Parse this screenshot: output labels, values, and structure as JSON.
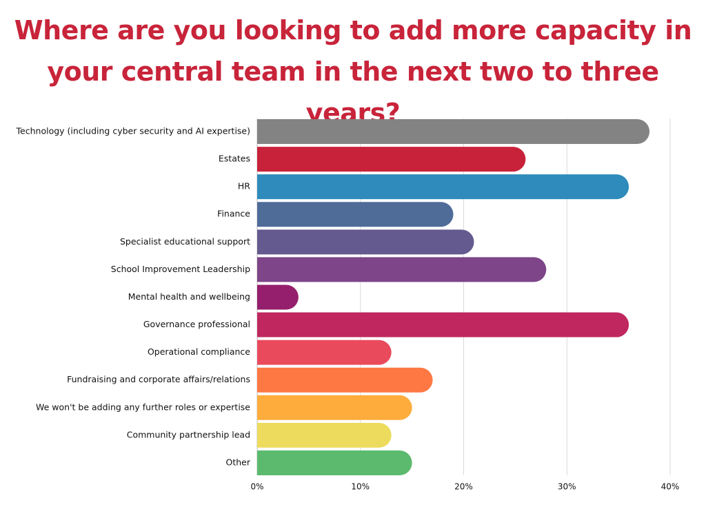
{
  "chart_data": {
    "type": "bar",
    "orientation": "horizontal",
    "title": "Where are you looking to add more capacity in your central team in the next two to three years?",
    "categories": [
      "Technology (including cyber security and AI expertise)",
      "Estates",
      "HR",
      "Finance",
      "Specialist educational support",
      "School Improvement Leadership",
      "Mental health and wellbeing",
      "Governance professional",
      "Operational compliance",
      "Fundraising and corporate affairs/relations",
      "We won't be adding any further roles or expertise",
      "Community partnership lead",
      "Other"
    ],
    "values": [
      38,
      26,
      36,
      19,
      21,
      28,
      4,
      36,
      13,
      17,
      15,
      13,
      15
    ],
    "colors": [
      "#838383",
      "#c8223a",
      "#2e8bbb",
      "#4f6c99",
      "#655a8f",
      "#7e4589",
      "#951f6c",
      "#c0275e",
      "#e94b5d",
      "#fe7843",
      "#feac3c",
      "#eddb5e",
      "#5bba6d"
    ],
    "xlim": [
      0,
      40
    ],
    "x_ticks": [
      0,
      10,
      20,
      30,
      40
    ],
    "x_tick_labels": [
      "0%",
      "10%",
      "20%",
      "30%",
      "40%"
    ],
    "unit": "%",
    "grid": true,
    "xlabel": "",
    "ylabel": "",
    "title_color": "#c8243a",
    "grid_color": "#d9d9d9"
  }
}
